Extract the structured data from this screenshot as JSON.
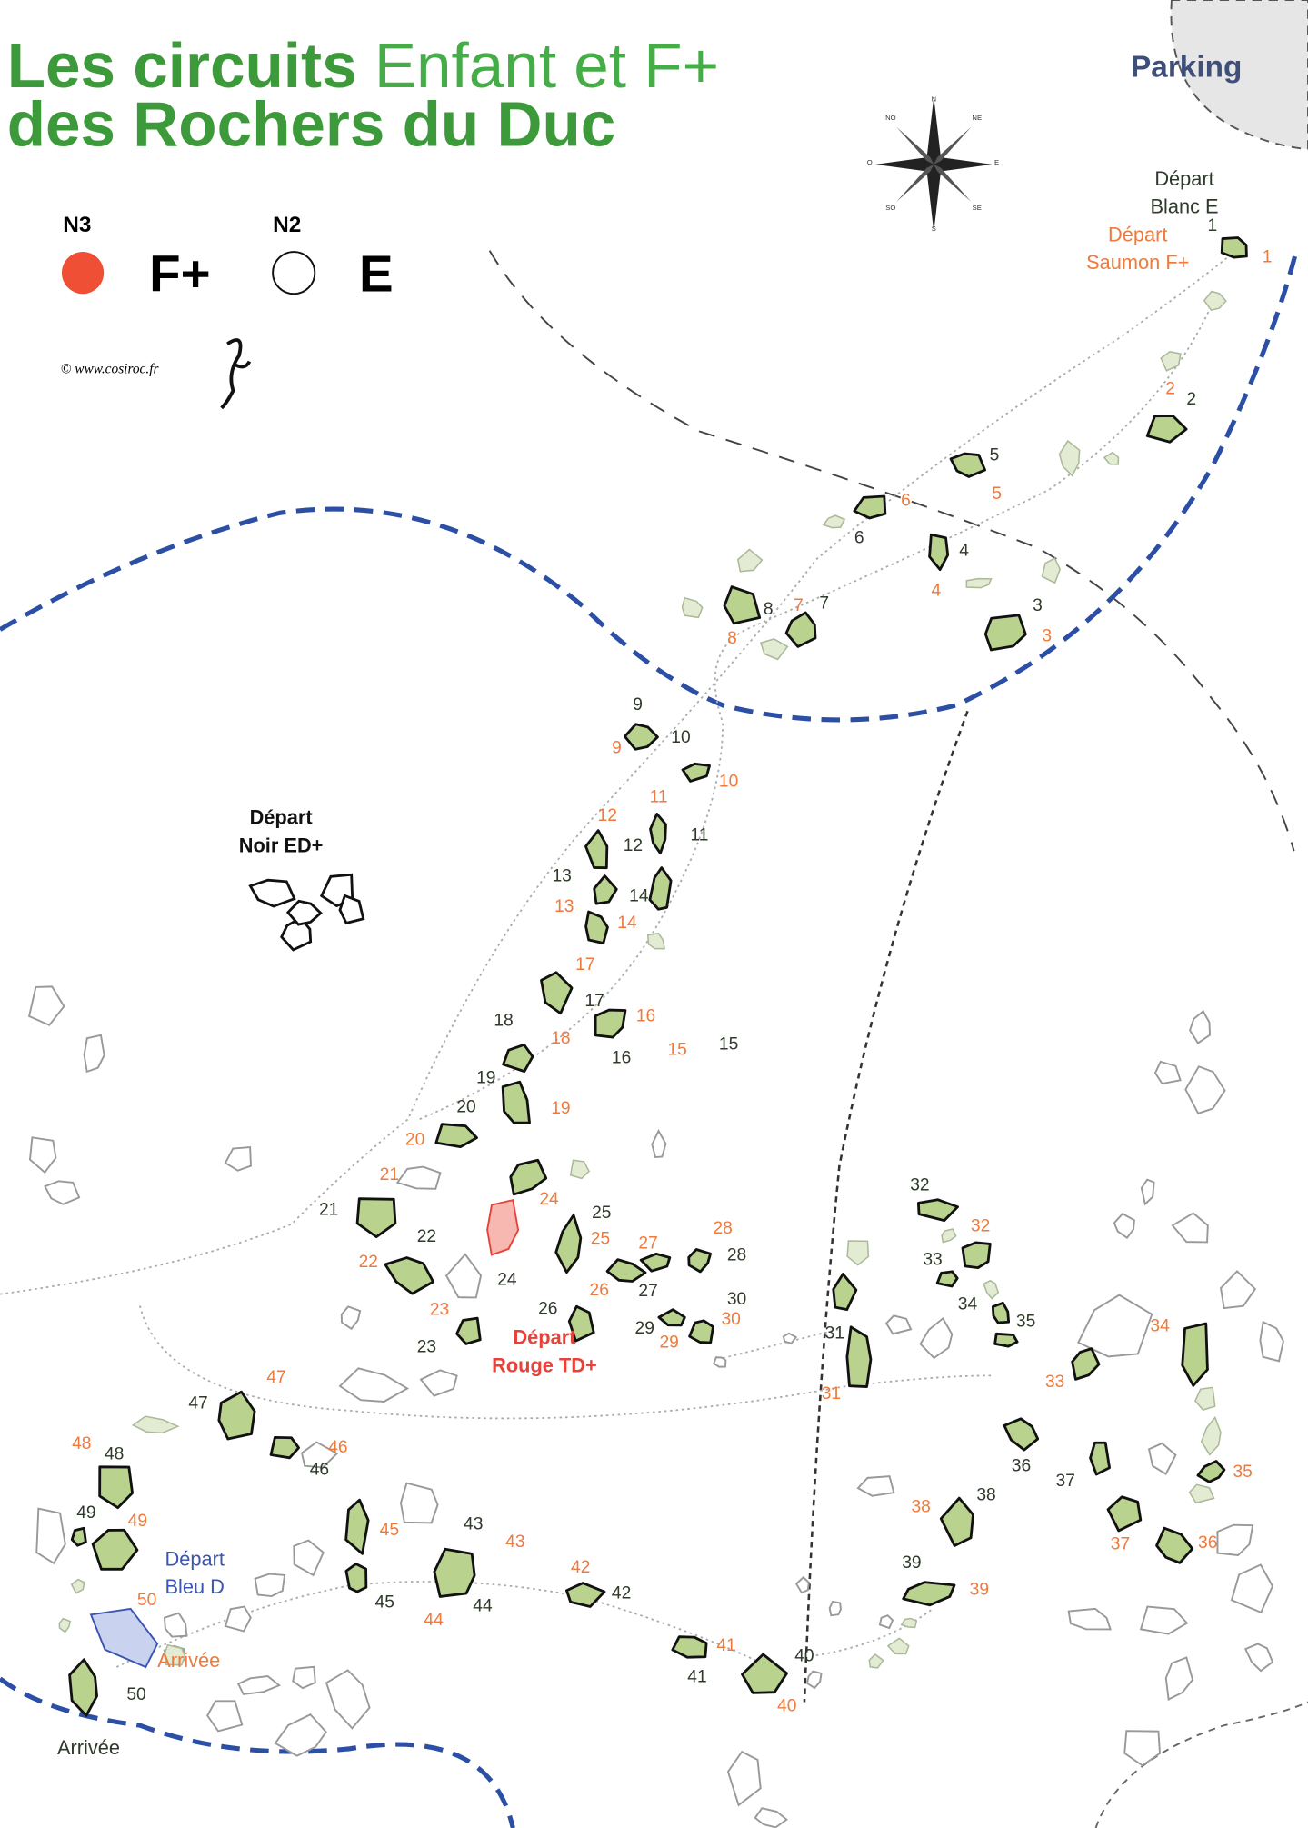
{
  "header": {
    "title_part1": "Les circuits",
    "title_part2": "Enfant et F+",
    "title_line2": "des Rochers du Duc"
  },
  "legend": {
    "n3_label": "N3",
    "n3_text": "F+",
    "n2_label": "N2",
    "n2_text": "E"
  },
  "copyright": "© www.cosiroc.fr",
  "parking": "Parking",
  "compass": [
    "N",
    "NE",
    "E",
    "SE",
    "S",
    "SO",
    "O",
    "NO"
  ],
  "places": [
    {
      "lines": [
        "Départ",
        "Blanc E"
      ]
    },
    {
      "lines": [
        "Départ",
        "Saumon F+"
      ]
    },
    {
      "lines": [
        "Départ",
        "Noir ED+"
      ]
    },
    {
      "lines": [
        "Départ",
        "Rouge TD+"
      ]
    },
    {
      "lines": [
        "Départ",
        "Bleu D"
      ]
    },
    {
      "lines": [
        "Arrivée"
      ]
    },
    {
      "lines": [
        "Arrivée"
      ]
    }
  ],
  "white_circuit_numbers": [
    1,
    2,
    3,
    4,
    5,
    6,
    7,
    8,
    9,
    10,
    11,
    12,
    13,
    14,
    15,
    16,
    17,
    18,
    19,
    20,
    21,
    22,
    23,
    24,
    25,
    26,
    27,
    28,
    29,
    30,
    31,
    32,
    33,
    34,
    35,
    36,
    37,
    38,
    39,
    40,
    41,
    42,
    43,
    44,
    45,
    46,
    47,
    48,
    49,
    50
  ],
  "salmon_circuit_numbers": [
    1,
    2,
    3,
    4,
    5,
    6,
    7,
    8,
    9,
    10,
    11,
    12,
    13,
    14,
    15,
    16,
    17,
    18,
    19,
    20,
    21,
    22,
    23,
    24,
    25,
    26,
    27,
    28,
    29,
    30,
    31,
    32,
    33,
    34,
    35,
    36,
    37,
    38,
    39,
    40,
    41,
    42,
    43,
    44,
    45,
    46,
    47,
    48,
    49,
    50
  ]
}
